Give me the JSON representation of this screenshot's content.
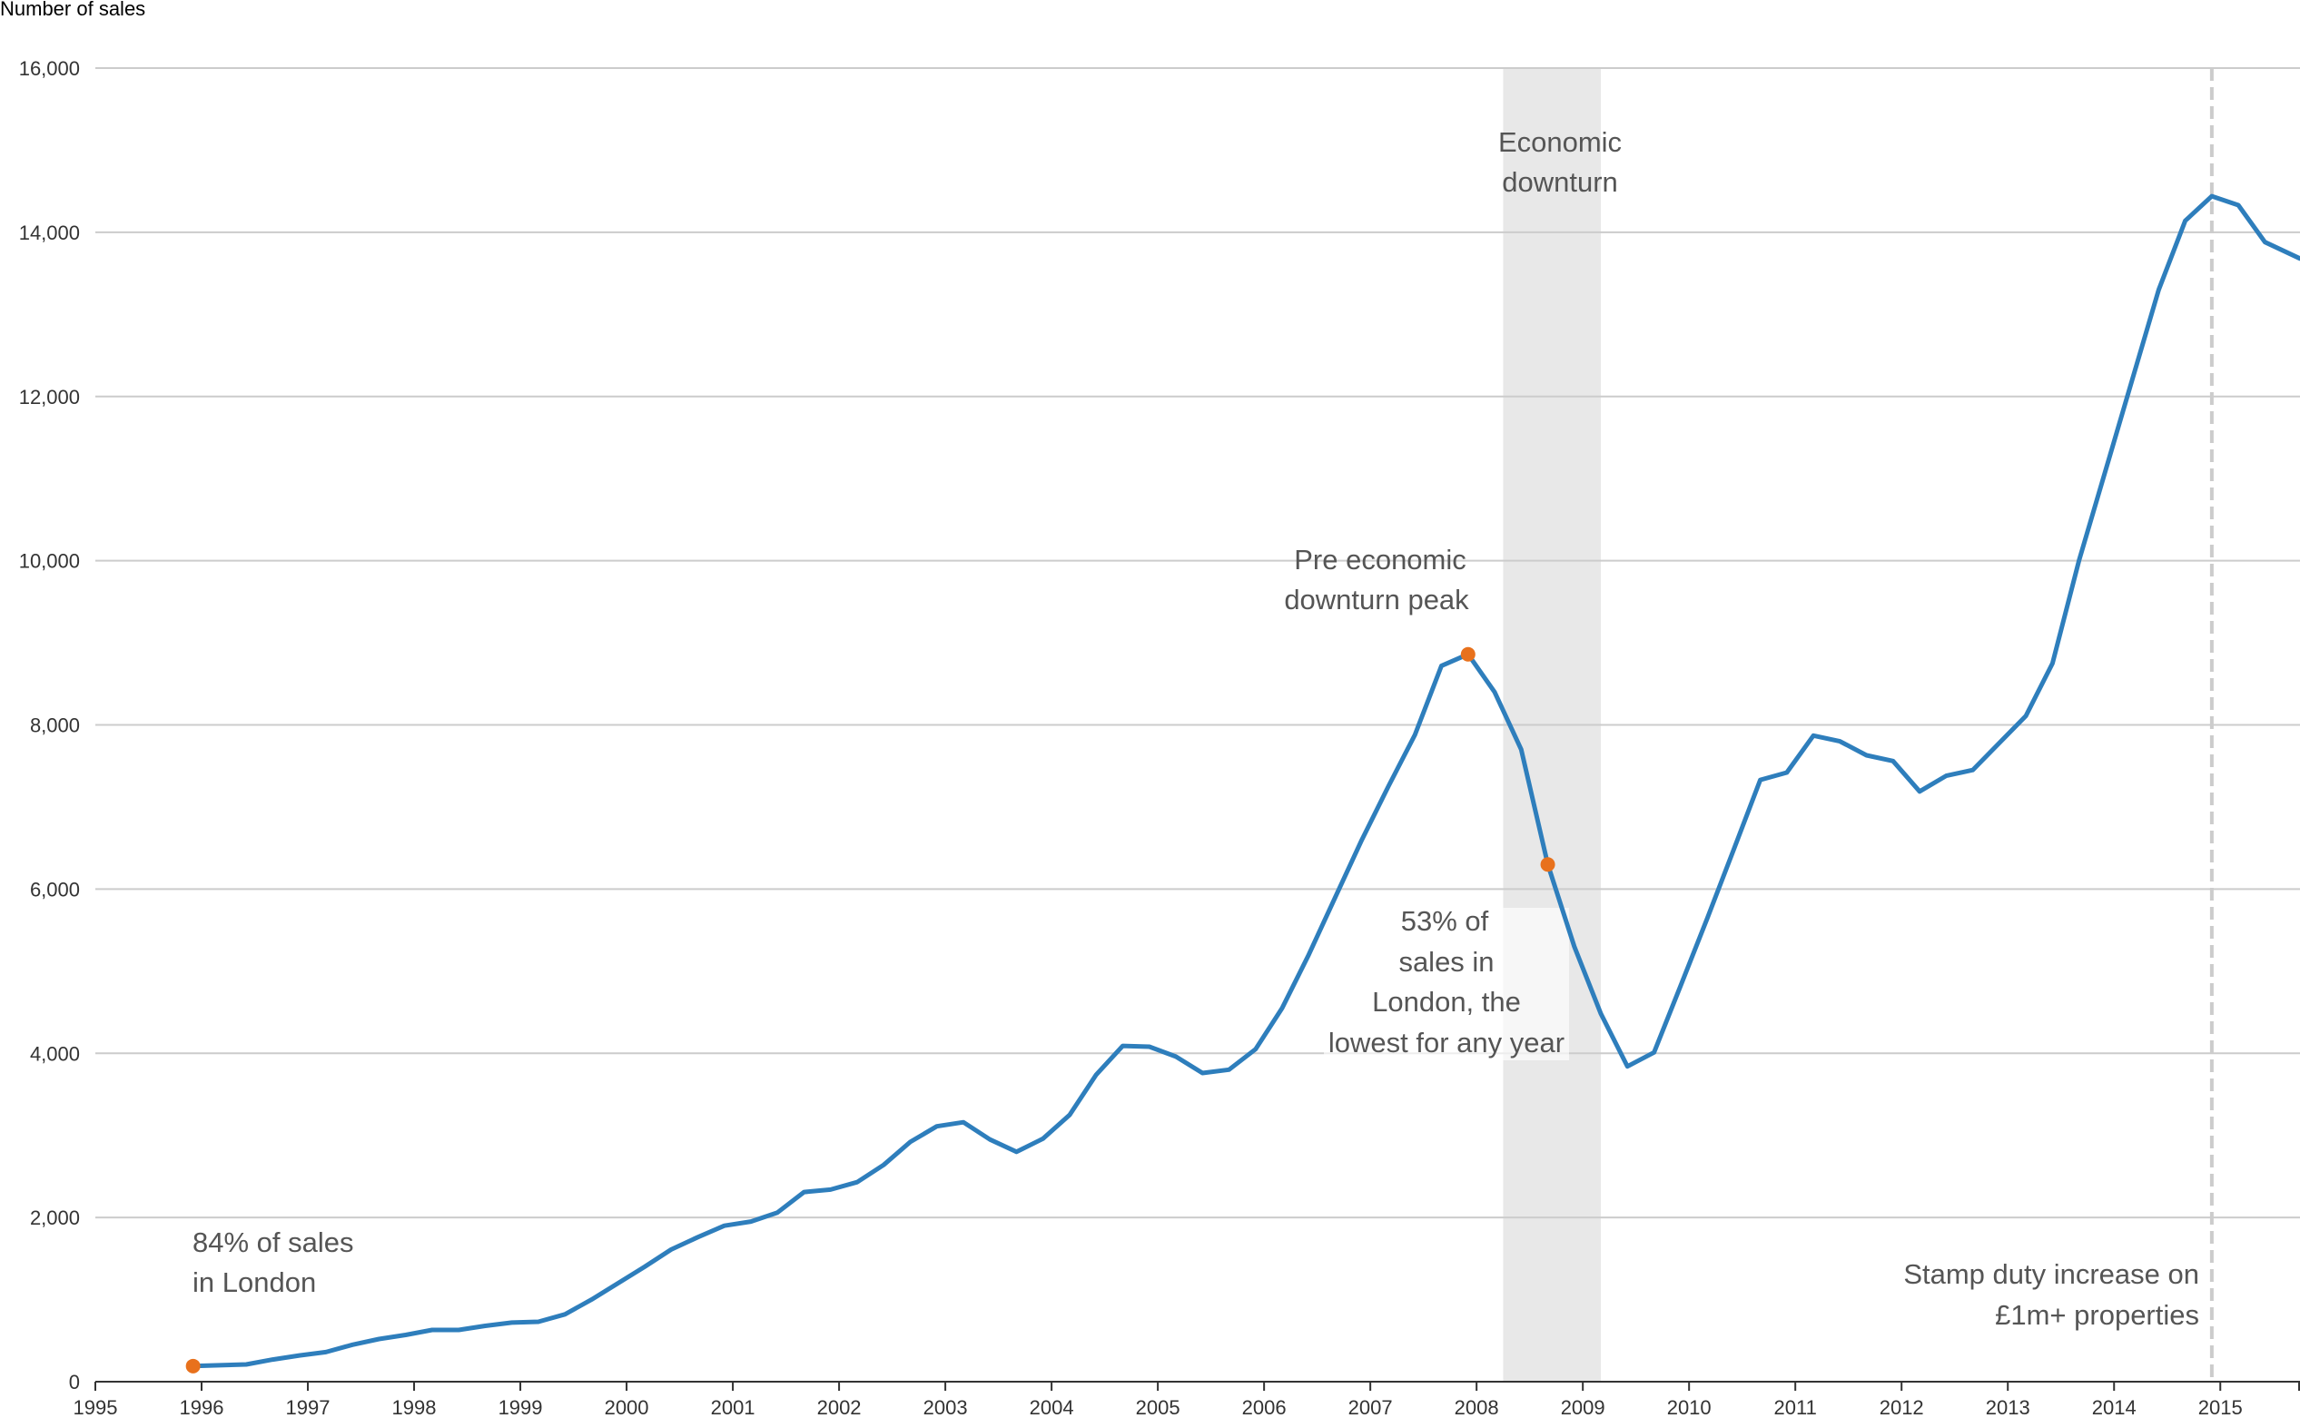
{
  "chart_data": {
    "type": "line",
    "title": "",
    "ylabel": "Number of sales",
    "xlabel": "",
    "xlim": [
      1995,
      2015.75
    ],
    "ylim": [
      0,
      16000
    ],
    "grid": true,
    "line_color": "#2e7ebc",
    "marker_color": "#e8711c",
    "band_color": "#e8e8e8",
    "x_ticks": [
      "1995",
      "1996",
      "1997",
      "1998",
      "1999",
      "2000",
      "2001",
      "2002",
      "2003",
      "2004",
      "2005",
      "2006",
      "2007",
      "2008",
      "2009",
      "2010",
      "2011",
      "2012",
      "2013",
      "2014",
      "2015"
    ],
    "y_ticks": [
      {
        "value": 0,
        "label": "0"
      },
      {
        "value": 2000,
        "label": "2,000"
      },
      {
        "value": 4000,
        "label": "4,000"
      },
      {
        "value": 6000,
        "label": "6,000"
      },
      {
        "value": 8000,
        "label": "8,000"
      },
      {
        "value": 10000,
        "label": "10,000"
      },
      {
        "value": 12000,
        "label": "12,000"
      },
      {
        "value": 14000,
        "label": "14,000"
      },
      {
        "value": 16000,
        "label": "16,000"
      }
    ],
    "series": [
      {
        "points": [
          [
            1995.92,
            190
          ],
          [
            1996.17,
            200
          ],
          [
            1996.42,
            210
          ],
          [
            1996.67,
            270
          ],
          [
            1996.92,
            320
          ],
          [
            1997.17,
            360
          ],
          [
            1997.42,
            450
          ],
          [
            1997.67,
            520
          ],
          [
            1997.92,
            570
          ],
          [
            1998.17,
            630
          ],
          [
            1998.42,
            630
          ],
          [
            1998.67,
            680
          ],
          [
            1998.92,
            720
          ],
          [
            1999.17,
            730
          ],
          [
            1999.42,
            820
          ],
          [
            1999.67,
            1000
          ],
          [
            1999.92,
            1200
          ],
          [
            2000.17,
            1400
          ],
          [
            2000.42,
            1610
          ],
          [
            2000.67,
            1760
          ],
          [
            2000.92,
            1900
          ],
          [
            2001.17,
            1950
          ],
          [
            2001.42,
            2060
          ],
          [
            2001.67,
            2310
          ],
          [
            2001.92,
            2340
          ],
          [
            2002.17,
            2430
          ],
          [
            2002.42,
            2640
          ],
          [
            2002.67,
            2920
          ],
          [
            2002.92,
            3110
          ],
          [
            2003.17,
            3160
          ],
          [
            2003.42,
            2950
          ],
          [
            2003.67,
            2800
          ],
          [
            2003.92,
            2960
          ],
          [
            2004.17,
            3250
          ],
          [
            2004.42,
            3740
          ],
          [
            2004.67,
            4090
          ],
          [
            2004.92,
            4080
          ],
          [
            2005.17,
            3960
          ],
          [
            2005.42,
            3760
          ],
          [
            2005.67,
            3800
          ],
          [
            2005.92,
            4050
          ],
          [
            2006.17,
            4550
          ],
          [
            2006.42,
            5200
          ],
          [
            2006.67,
            5900
          ],
          [
            2006.92,
            6600
          ],
          [
            2007.17,
            7250
          ],
          [
            2007.42,
            7880
          ],
          [
            2007.67,
            8720
          ],
          [
            2007.92,
            8860
          ],
          [
            2008.17,
            8400
          ],
          [
            2008.42,
            7700
          ],
          [
            2008.67,
            6300
          ],
          [
            2008.92,
            5300
          ],
          [
            2009.17,
            4480
          ],
          [
            2009.42,
            3840
          ],
          [
            2009.67,
            4010
          ],
          [
            2009.92,
            4820
          ],
          [
            2010.17,
            5640
          ],
          [
            2010.42,
            6480
          ],
          [
            2010.67,
            7330
          ],
          [
            2010.92,
            7420
          ],
          [
            2011.17,
            7870
          ],
          [
            2011.42,
            7800
          ],
          [
            2011.67,
            7630
          ],
          [
            2011.92,
            7560
          ],
          [
            2012.17,
            7190
          ],
          [
            2012.42,
            7380
          ],
          [
            2012.67,
            7450
          ],
          [
            2012.92,
            7780
          ],
          [
            2013.17,
            8110
          ],
          [
            2013.42,
            8750
          ],
          [
            2013.67,
            10000
          ],
          [
            2013.92,
            11100
          ],
          [
            2014.17,
            12200
          ],
          [
            2014.42,
            13300
          ],
          [
            2014.67,
            14140
          ],
          [
            2014.92,
            14440
          ],
          [
            2015.17,
            14330
          ],
          [
            2015.42,
            13880
          ],
          [
            2015.75,
            13680
          ]
        ]
      }
    ],
    "highlight_points": [
      {
        "x": 1995.92,
        "y": 190
      },
      {
        "x": 2007.92,
        "y": 8860
      },
      {
        "x": 2008.67,
        "y": 6300
      }
    ],
    "shaded_band": {
      "x_start": 2008.25,
      "x_end": 2009.17,
      "label_line1": "Economic",
      "label_line2": "downturn"
    },
    "reference_line": {
      "x": 2014.92,
      "label_line1": "Stamp duty increase on",
      "label_line2": "£1m+ properties"
    },
    "annotations": [
      {
        "lines": [
          "84% of sales",
          "in London"
        ]
      },
      {
        "lines": [
          "Pre economic",
          "downturn peak"
        ]
      },
      {
        "lines": [
          "53% of",
          "sales in",
          "London, the",
          "lowest for any year"
        ]
      }
    ]
  }
}
